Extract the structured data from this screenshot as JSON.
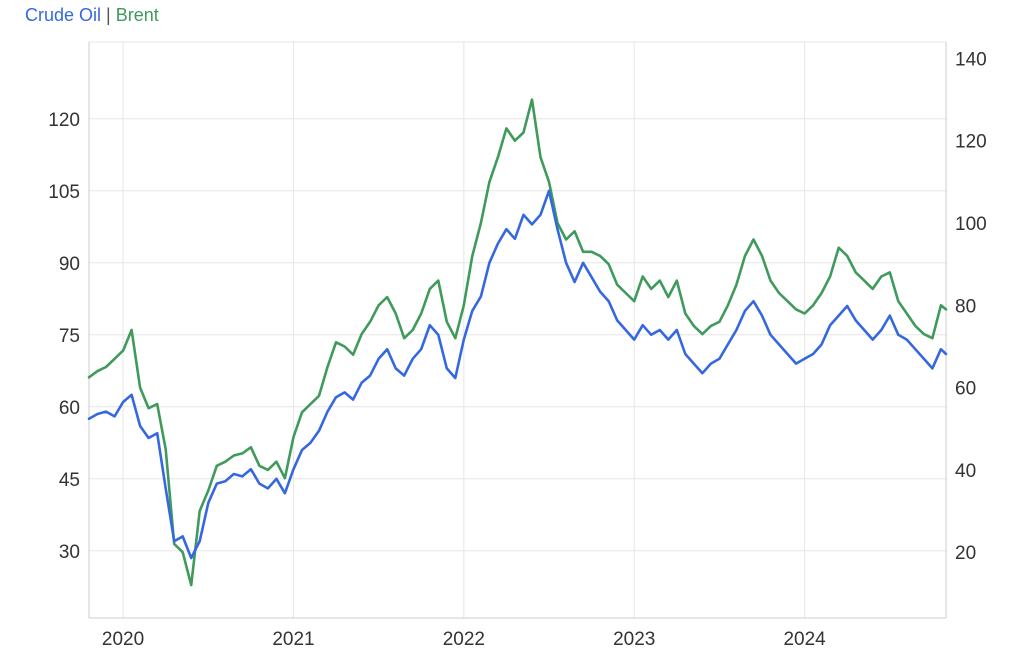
{
  "legend": {
    "series1": "Crude Oil",
    "separator": "|",
    "series2": "Brent"
  },
  "colors": {
    "crude": "#3568e0",
    "brent": "#3f9a5b",
    "grid": "#e6e6e6",
    "axis": "#cccccc",
    "legend_sep": "#555555"
  },
  "chart_data": {
    "type": "line",
    "title": "",
    "x_ticks": [
      "2020",
      "2021",
      "2022",
      "2023",
      "2024"
    ],
    "xlim": [
      2019.8,
      2024.83
    ],
    "y_left": {
      "ticks": [
        30,
        45,
        60,
        75,
        90,
        105,
        120
      ],
      "ylim": [
        16,
        136
      ]
    },
    "y_right": {
      "ticks": [
        20,
        40,
        60,
        80,
        100,
        120,
        140
      ],
      "ylim": [
        4,
        144
      ]
    },
    "grid": true,
    "legend_position": "top-left",
    "series": [
      {
        "name": "Crude Oil",
        "axis": "left",
        "x": [
          2019.8,
          2019.85,
          2019.9,
          2019.95,
          2020.0,
          2020.05,
          2020.1,
          2020.15,
          2020.2,
          2020.25,
          2020.3,
          2020.35,
          2020.4,
          2020.45,
          2020.5,
          2020.55,
          2020.6,
          2020.65,
          2020.7,
          2020.75,
          2020.8,
          2020.85,
          2020.9,
          2020.95,
          2021.0,
          2021.05,
          2021.1,
          2021.15,
          2021.2,
          2021.25,
          2021.3,
          2021.35,
          2021.4,
          2021.45,
          2021.5,
          2021.55,
          2021.6,
          2021.65,
          2021.7,
          2021.75,
          2021.8,
          2021.85,
          2021.9,
          2021.95,
          2022.0,
          2022.05,
          2022.1,
          2022.15,
          2022.2,
          2022.25,
          2022.3,
          2022.35,
          2022.4,
          2022.45,
          2022.5,
          2022.55,
          2022.6,
          2022.65,
          2022.7,
          2022.75,
          2022.8,
          2022.85,
          2022.9,
          2022.95,
          2023.0,
          2023.05,
          2023.1,
          2023.15,
          2023.2,
          2023.25,
          2023.3,
          2023.35,
          2023.4,
          2023.45,
          2023.5,
          2023.55,
          2023.6,
          2023.65,
          2023.7,
          2023.75,
          2023.8,
          2023.85,
          2023.9,
          2023.95,
          2024.0,
          2024.05,
          2024.1,
          2024.15,
          2024.2,
          2024.25,
          2024.3,
          2024.35,
          2024.4,
          2024.45,
          2024.5,
          2024.55,
          2024.6,
          2024.65,
          2024.7,
          2024.75,
          2024.8,
          2024.83
        ],
        "values": [
          57.5,
          58.5,
          59,
          58,
          61,
          62.5,
          56,
          53.5,
          54.5,
          43,
          32,
          33,
          28.5,
          32,
          40,
          44,
          44.5,
          46,
          45.5,
          47,
          44,
          43,
          45,
          42,
          47,
          51,
          52.5,
          55,
          59,
          62,
          63,
          61.5,
          65,
          66.5,
          70,
          72,
          68,
          66.5,
          70,
          72,
          77,
          75,
          68,
          66,
          74,
          80,
          83,
          90,
          94,
          97,
          95,
          100,
          98,
          100,
          105,
          97,
          90,
          86,
          90,
          87,
          84,
          82,
          78,
          76,
          74,
          77,
          75,
          76,
          74,
          76,
          71,
          69,
          67,
          69,
          70,
          73,
          76,
          80,
          82,
          79,
          75,
          73,
          71,
          69,
          70,
          71,
          73,
          77,
          79,
          81,
          78,
          76,
          74,
          76,
          79,
          75,
          74,
          72,
          70,
          68,
          72,
          71
        ]
      },
      {
        "name": "Brent",
        "axis": "right",
        "x": [
          2019.8,
          2019.85,
          2019.9,
          2019.95,
          2020.0,
          2020.05,
          2020.1,
          2020.15,
          2020.2,
          2020.25,
          2020.3,
          2020.35,
          2020.4,
          2020.45,
          2020.5,
          2020.55,
          2020.6,
          2020.65,
          2020.7,
          2020.75,
          2020.8,
          2020.85,
          2020.9,
          2020.95,
          2021.0,
          2021.05,
          2021.1,
          2021.15,
          2021.2,
          2021.25,
          2021.3,
          2021.35,
          2021.4,
          2021.45,
          2021.5,
          2021.55,
          2021.6,
          2021.65,
          2021.7,
          2021.75,
          2021.8,
          2021.85,
          2021.9,
          2021.95,
          2022.0,
          2022.05,
          2022.1,
          2022.15,
          2022.2,
          2022.25,
          2022.3,
          2022.35,
          2022.4,
          2022.45,
          2022.5,
          2022.55,
          2022.6,
          2022.65,
          2022.7,
          2022.75,
          2022.8,
          2022.85,
          2022.9,
          2022.95,
          2023.0,
          2023.05,
          2023.1,
          2023.15,
          2023.2,
          2023.25,
          2023.3,
          2023.35,
          2023.4,
          2023.45,
          2023.5,
          2023.55,
          2023.6,
          2023.65,
          2023.7,
          2023.75,
          2023.8,
          2023.85,
          2023.9,
          2023.95,
          2024.0,
          2024.05,
          2024.1,
          2024.15,
          2024.2,
          2024.25,
          2024.3,
          2024.35,
          2024.4,
          2024.45,
          2024.5,
          2024.55,
          2024.6,
          2024.65,
          2024.7,
          2024.75,
          2024.8,
          2024.83
        ],
        "values": [
          62.5,
          64,
          65,
          67,
          69,
          74,
          60,
          55,
          56,
          45,
          22,
          20,
          12,
          30,
          35,
          41,
          42,
          43.5,
          44,
          45.5,
          41,
          40,
          42,
          38,
          48,
          54,
          56,
          58,
          65,
          71,
          70,
          68,
          73,
          76,
          80,
          82,
          78,
          72,
          74,
          78,
          84,
          86,
          76,
          72,
          80,
          92,
          100,
          110,
          116,
          123,
          120,
          122,
          130,
          116,
          110,
          100,
          96,
          98,
          93,
          93,
          92,
          90,
          85,
          83,
          81,
          87,
          84,
          86,
          82,
          86,
          78,
          75,
          73,
          75,
          76,
          80,
          85,
          92,
          96,
          92,
          86,
          83,
          81,
          79,
          78,
          80,
          83,
          87,
          94,
          92,
          88,
          86,
          84,
          87,
          88,
          81,
          78,
          75,
          73,
          72,
          80,
          79
        ]
      }
    ]
  }
}
